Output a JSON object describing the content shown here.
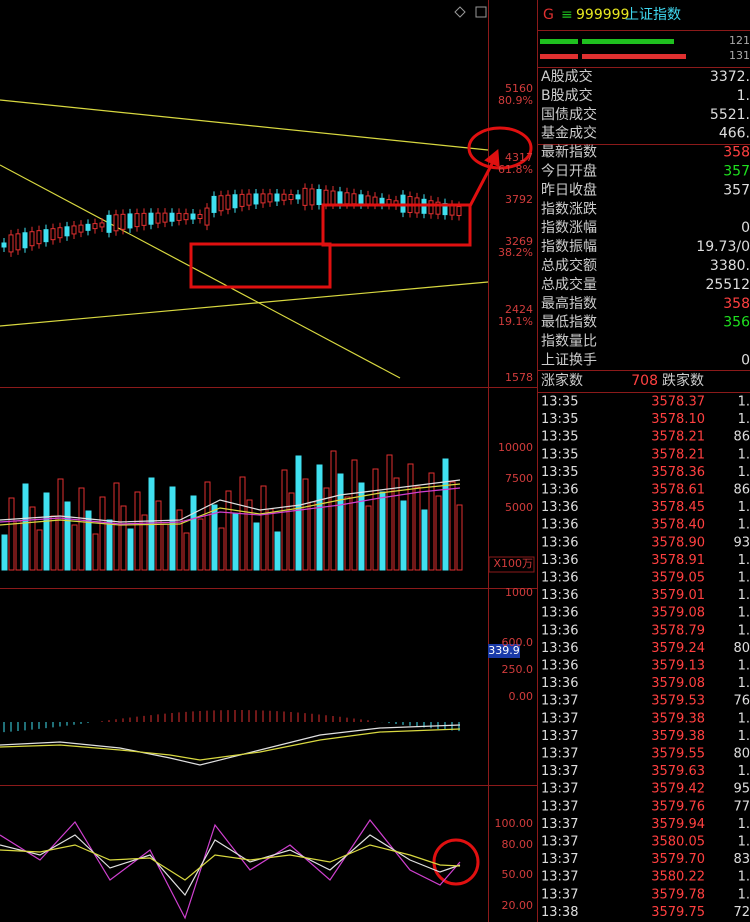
{
  "price_axis": [
    "5160",
    "80.9%",
    "4317",
    "61.8%",
    "3792",
    "3269",
    "38.2%",
    "2424",
    "19.1%",
    "1578"
  ],
  "volume_axis": [
    "10000",
    "7500",
    "5000",
    "X100万"
  ],
  "macd_axis": [
    "1000",
    "600.0",
    "250.0",
    "0.00"
  ],
  "macd_value": "339.9",
  "kdj_axis": [
    "100.00",
    "80.00",
    "50.00",
    "20.00"
  ],
  "quote": {
    "marker": "G",
    "menu": "≡",
    "code": "999999",
    "name": "上证指数",
    "bar_values": [
      "121",
      "131"
    ],
    "rows": [
      [
        "A股成交",
        "3372."
      ],
      [
        "B股成交",
        "1."
      ],
      [
        "国债成交",
        "5521."
      ],
      [
        "基金成交",
        "466."
      ],
      [
        "最新指数",
        "358"
      ],
      [
        "今日开盘",
        "357"
      ],
      [
        "昨日收盘",
        "357"
      ],
      [
        "指数涨跌",
        ""
      ],
      [
        "指数涨幅",
        "0"
      ],
      [
        "指数振幅",
        "19.73/0"
      ],
      [
        "总成交额",
        "3380."
      ],
      [
        "总成交量",
        "25512"
      ],
      [
        "最高指数",
        "358"
      ],
      [
        "最低指数",
        "356"
      ],
      [
        "指数量比",
        ""
      ],
      [
        "上证换手",
        "0"
      ]
    ]
  },
  "breadth": {
    "up_label": "涨家数",
    "up_count": "708",
    "down_label": "跌家数"
  },
  "ticks": [
    [
      "13:35",
      "3578.37",
      "1."
    ],
    [
      "13:35",
      "3578.10",
      "1."
    ],
    [
      "13:35",
      "3578.21",
      "86"
    ],
    [
      "13:35",
      "3578.21",
      "1."
    ],
    [
      "13:35",
      "3578.36",
      "1."
    ],
    [
      "13:36",
      "3578.61",
      "86"
    ],
    [
      "13:36",
      "3578.45",
      "1."
    ],
    [
      "13:36",
      "3578.40",
      "1."
    ],
    [
      "13:36",
      "3578.90",
      "93"
    ],
    [
      "13:36",
      "3578.91",
      "1."
    ],
    [
      "13:36",
      "3579.05",
      "1."
    ],
    [
      "13:36",
      "3579.01",
      "1."
    ],
    [
      "13:36",
      "3579.08",
      "1."
    ],
    [
      "13:36",
      "3578.79",
      "1."
    ],
    [
      "13:36",
      "3579.24",
      "80"
    ],
    [
      "13:36",
      "3579.13",
      "1."
    ],
    [
      "13:36",
      "3579.08",
      "1."
    ],
    [
      "13:37",
      "3579.53",
      "76"
    ],
    [
      "13:37",
      "3579.38",
      "1."
    ],
    [
      "13:37",
      "3579.38",
      "1."
    ],
    [
      "13:37",
      "3579.55",
      "80"
    ],
    [
      "13:37",
      "3579.63",
      "1."
    ],
    [
      "13:37",
      "3579.42",
      "95"
    ],
    [
      "13:37",
      "3579.76",
      "77"
    ],
    [
      "13:37",
      "3579.94",
      "1."
    ],
    [
      "13:37",
      "3580.05",
      "1."
    ],
    [
      "13:37",
      "3579.70",
      "83"
    ],
    [
      "13:37",
      "3580.22",
      "1."
    ],
    [
      "13:37",
      "3579.78",
      "1."
    ],
    [
      "13:38",
      "3579.75",
      "72"
    ]
  ]
}
